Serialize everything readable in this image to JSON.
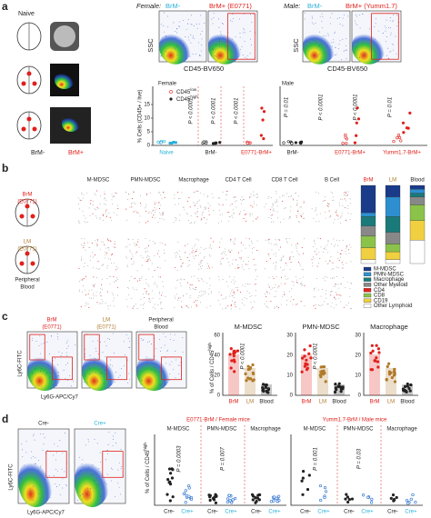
{
  "panel_a": {
    "label": "a",
    "naive": "Naive",
    "brm_neg": "BrM-",
    "brm_pos": "BrM+",
    "female_flow": {
      "sex": "Female:",
      "neg": "BrM-",
      "pos": "BrM+ (E0771)",
      "y_axis": "SSC",
      "x_axis": "CD45-BV650"
    },
    "male_flow": {
      "sex": "Male:",
      "neg": "BrM-",
      "pos": "BrM+ (Yumm1.7)",
      "y_axis": "SSC",
      "x_axis": "CD45-BV650"
    },
    "plot": {
      "y_axis": "% Cells (CD45+ / live)",
      "yticks": [
        "0",
        "5",
        "10",
        "15"
      ],
      "female": "Female",
      "male": "Male",
      "legend": [
        {
          "name": "CD45",
          "sup": "low"
        },
        {
          "name": "CD45",
          "sup": "high"
        }
      ],
      "female_categories": [
        "Naive",
        "BrM-",
        "E0771-BrM+"
      ],
      "female_p": [
        "P < 0.0001",
        "P < 0.0001",
        "P < 0.0001"
      ],
      "male_categories": [
        "BrM-",
        "E0771-BrM+",
        "Yumm1.7-BrM+"
      ],
      "male_p": [
        "P = 0.01",
        "P < 0.0001",
        "P < 0.0001",
        "P = 0.01"
      ]
    }
  },
  "panel_b": {
    "label": "b",
    "columns": [
      "M-MDSC",
      "PMN-MDSC",
      "Macrophage",
      "CD4 T Cell",
      "CD8 T Cell",
      "B Cell"
    ],
    "rows": [
      {
        "lines": [
          "BrM",
          "(E0771)"
        ]
      },
      {
        "lines": [
          "LM",
          "(E0771)"
        ]
      },
      {
        "lines": [
          "Peripheral",
          "Blood"
        ]
      }
    ],
    "bars": [
      "BrM",
      "LM",
      "Blood"
    ],
    "legend": [
      "M-MDSC",
      "PMN-MDSC",
      "Macrophage",
      "Other Myeloid",
      "CD4",
      "CD8",
      "CD19",
      "Other Lymphoid"
    ]
  },
  "panel_c": {
    "label": "c",
    "flows": [
      {
        "lines": [
          "BrM",
          "(E0771)"
        ]
      },
      {
        "lines": [
          "LM",
          "(E0771)"
        ]
      },
      {
        "lines": [
          "Peripheral",
          "Blood"
        ]
      }
    ],
    "y_axis": "Ly6C-FITC",
    "x_axis": "Ly6G-APC/Cy7",
    "y_label": {
      "name": "% of Cells / CD45",
      "sup": "high"
    },
    "plots": [
      {
        "title": "M-MDSC",
        "yticks": [
          "0",
          "20",
          "40",
          "60"
        ],
        "categories": [
          "BrM",
          "LM",
          "Blood"
        ],
        "p": [
          "P < 0.0001"
        ]
      },
      {
        "title": "PMN-MDSC",
        "yticks": [
          "0",
          "10",
          "20",
          "30"
        ],
        "categories": [
          "BrM",
          "LM",
          "Blood"
        ],
        "p": [
          "P < 0.0001"
        ]
      },
      {
        "title": "Macrophage",
        "yticks": [
          "0",
          "10",
          "20",
          "30"
        ],
        "categories": [
          "BrM",
          "LM",
          "Blood"
        ],
        "p": []
      }
    ]
  },
  "panel_d": {
    "label": "d",
    "flows": [
      "Cre-",
      "Cre+"
    ],
    "y_axis": "Ly6C-FITC",
    "x_axis": "Ly6G-APC/Cy7",
    "y_label": {
      "name": "% of Cells / CD45",
      "sup": "high"
    },
    "groups": [
      {
        "title": "E0771-BrM / Female mice",
        "subplots": [
          "M-MDSC",
          "PMN-MDSC",
          "Macrophage"
        ],
        "p": [
          "P = 0.0003",
          "P = 0.007"
        ],
        "ticks": [
          "Cre-",
          "Cre+"
        ]
      },
      {
        "title": "Yumm1.7-BrM / Male mice",
        "subplots": [
          "M-MDSC",
          "PMN-MDSC",
          "Macrophage"
        ],
        "p": [
          "P = 0.001",
          "P = 0.03"
        ],
        "ticks": [
          "Cre-",
          "Cre+"
        ]
      }
    ]
  }
}
